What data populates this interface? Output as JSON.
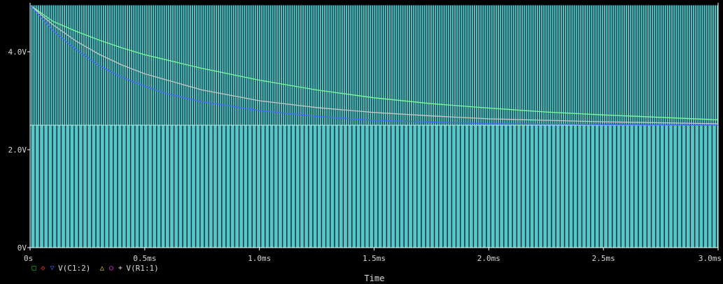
{
  "colors": {
    "background": "#000000",
    "plot_fill": "#56c7c9",
    "dense_lines": "#0a2a2e",
    "axis_text": "#d9d9d9",
    "series_green": "#7dff9a",
    "series_blue": "#4a6bff",
    "series_gray": "#c8c8c8",
    "marker_green": "#20d020",
    "marker_red": "#ff4040",
    "marker_blue": "#3a5cff",
    "marker_yellow": "#e0e040",
    "marker_magenta": "#ff40ff",
    "marker_white": "#e0e0e0"
  },
  "legend": {
    "marker1": "□",
    "marker2": "◇",
    "marker3": "▽",
    "label1": "V(C1:2)",
    "marker4": "△",
    "marker5": "○",
    "marker6": "+",
    "label2": "V(R1:1)"
  },
  "chart_data": {
    "type": "line",
    "xlabel": "Time",
    "ylabel": "",
    "title": "",
    "xlim": [
      0,
      3.0
    ],
    "ylim": [
      0,
      5.0
    ],
    "x_ticks": [
      {
        "value": 0,
        "label": "0s"
      },
      {
        "value": 0.5,
        "label": "0.5ms"
      },
      {
        "value": 1.0,
        "label": "1.0ms"
      },
      {
        "value": 1.5,
        "label": "1.5ms"
      },
      {
        "value": 2.0,
        "label": "2.0ms"
      },
      {
        "value": 2.5,
        "label": "2.5ms"
      },
      {
        "value": 3.0,
        "label": "3.0ms"
      }
    ],
    "y_ticks": [
      {
        "value": 0,
        "label": "0V"
      },
      {
        "value": 2.0,
        "label": "2.0V"
      },
      {
        "value": 4.0,
        "label": "4.0V"
      }
    ],
    "band_low": 0,
    "band_high_lower": 2.5,
    "band_top": 4.95,
    "series": [
      {
        "color": "#7dff9a",
        "x": [
          0,
          0.1,
          0.2,
          0.3,
          0.4,
          0.5,
          0.75,
          1.0,
          1.25,
          1.5,
          1.75,
          2.0,
          2.25,
          2.5,
          2.75,
          3.0
        ],
        "y": [
          4.95,
          4.62,
          4.42,
          4.24,
          4.08,
          3.94,
          3.66,
          3.42,
          3.22,
          3.06,
          2.94,
          2.85,
          2.77,
          2.71,
          2.66,
          2.61
        ]
      },
      {
        "color": "#c8c8c8",
        "x": [
          0,
          0.1,
          0.2,
          0.3,
          0.4,
          0.5,
          0.75,
          1.0,
          1.25,
          1.5,
          1.75,
          2.0,
          2.5,
          3.0
        ],
        "y": [
          4.95,
          4.55,
          4.22,
          3.95,
          3.73,
          3.55,
          3.22,
          3.0,
          2.86,
          2.76,
          2.69,
          2.63,
          2.57,
          2.53
        ]
      },
      {
        "color": "#4a6bff",
        "x": [
          0,
          0.1,
          0.2,
          0.3,
          0.4,
          0.5,
          0.6,
          0.75,
          1.0,
          1.25,
          1.5,
          2.0,
          2.5,
          3.0
        ],
        "y": [
          4.95,
          4.43,
          4.05,
          3.72,
          3.48,
          3.3,
          3.14,
          2.98,
          2.8,
          2.68,
          2.6,
          2.53,
          2.51,
          2.5
        ]
      }
    ]
  }
}
